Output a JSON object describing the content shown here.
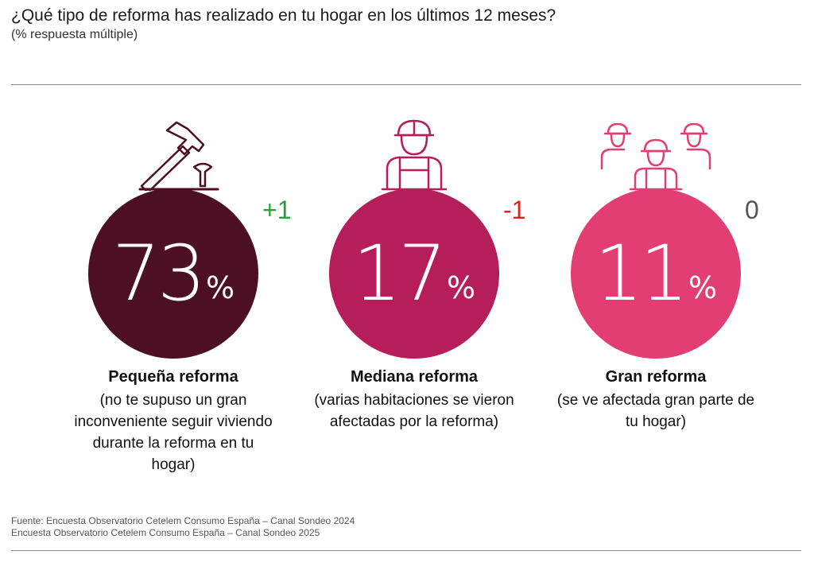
{
  "chart_data": {
    "type": "bubble-percent",
    "title": "¿Qué tipo de reforma has realizado en tu hogar en los últimos 12 meses?",
    "subtitle": "(% respuesta múltiple)",
    "categories": [
      "Pequeña reforma",
      "Mediana reforma",
      "Gran reforma"
    ],
    "values": [
      73,
      17,
      11
    ],
    "unit": "%",
    "items": [
      {
        "label": "Pequeña reforma",
        "description": "(no te supuso un gran inconveniente seguir viviendo durante la reforma en tu hogar)",
        "value": "73",
        "unit": "%",
        "delta": "+1",
        "icon": "hammer-icon",
        "color": "#4d0f23",
        "delta_color": "#2e9e3a"
      },
      {
        "label": "Mediana reforma",
        "description": "(varias habitaciones se vieron afectadas por la reforma)",
        "value": "17",
        "unit": "%",
        "delta": "-1",
        "icon": "worker-icon",
        "color": "#b51e58",
        "delta_color": "#d9261c"
      },
      {
        "label": "Gran reforma",
        "description": "(se ve afectada gran parte de tu hogar)",
        "value": "11",
        "unit": "%",
        "delta": "0",
        "icon": "workers-group-icon",
        "color": "#e23e72",
        "delta_color": "#555555"
      }
    ]
  },
  "footer": {
    "line1": "Fuente: Encuesta Observatorio Cetelem Consumo España – Canal Sondeo 2024",
    "line2": "Encuesta Observatorio Cetelem Consumo España – Canal Sondeo 2025"
  }
}
